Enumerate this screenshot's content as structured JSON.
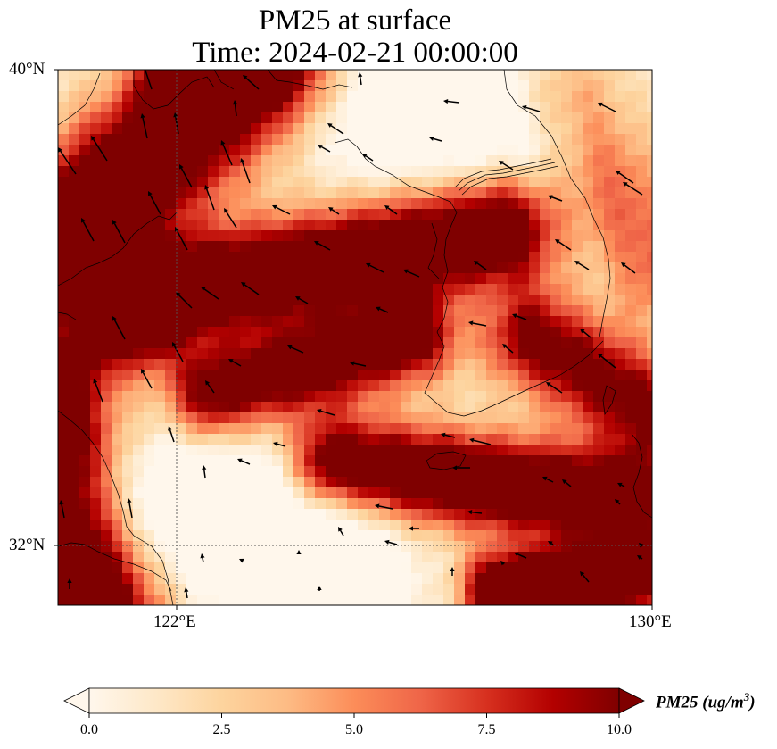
{
  "title": {
    "line1": "PM25 at surface",
    "line2": "Time: 2024-02-21 00:00:00"
  },
  "map": {
    "lat_range": [
      31,
      40
    ],
    "lon_range": [
      120,
      130
    ],
    "lat_ticks": [
      {
        "value": 40,
        "label": "40°N"
      },
      {
        "value": 32,
        "label": "32°N"
      }
    ],
    "lon_ticks": [
      {
        "value": 122,
        "label": "122°E"
      },
      {
        "value": 130,
        "label": "130°E"
      }
    ],
    "gridlines": {
      "lat": [
        32
      ],
      "lon": [
        122
      ]
    }
  },
  "colorbar": {
    "variable": "PM25",
    "unit": "ug/m",
    "unit_exponent": "3",
    "range": [
      0,
      10
    ],
    "extend": "both",
    "ticks": [
      {
        "value": 0,
        "label": "0.0"
      },
      {
        "value": 2.5,
        "label": "2.5"
      },
      {
        "value": 5,
        "label": "5.0"
      },
      {
        "value": 7.5,
        "label": "7.5"
      },
      {
        "value": 10,
        "label": "10.0"
      }
    ],
    "colormap": [
      "#fff7ec",
      "#fee8c8",
      "#fdd49e",
      "#fdbb84",
      "#fc8d59",
      "#ef6548",
      "#d7301f",
      "#b30000",
      "#7f0000"
    ]
  }
}
